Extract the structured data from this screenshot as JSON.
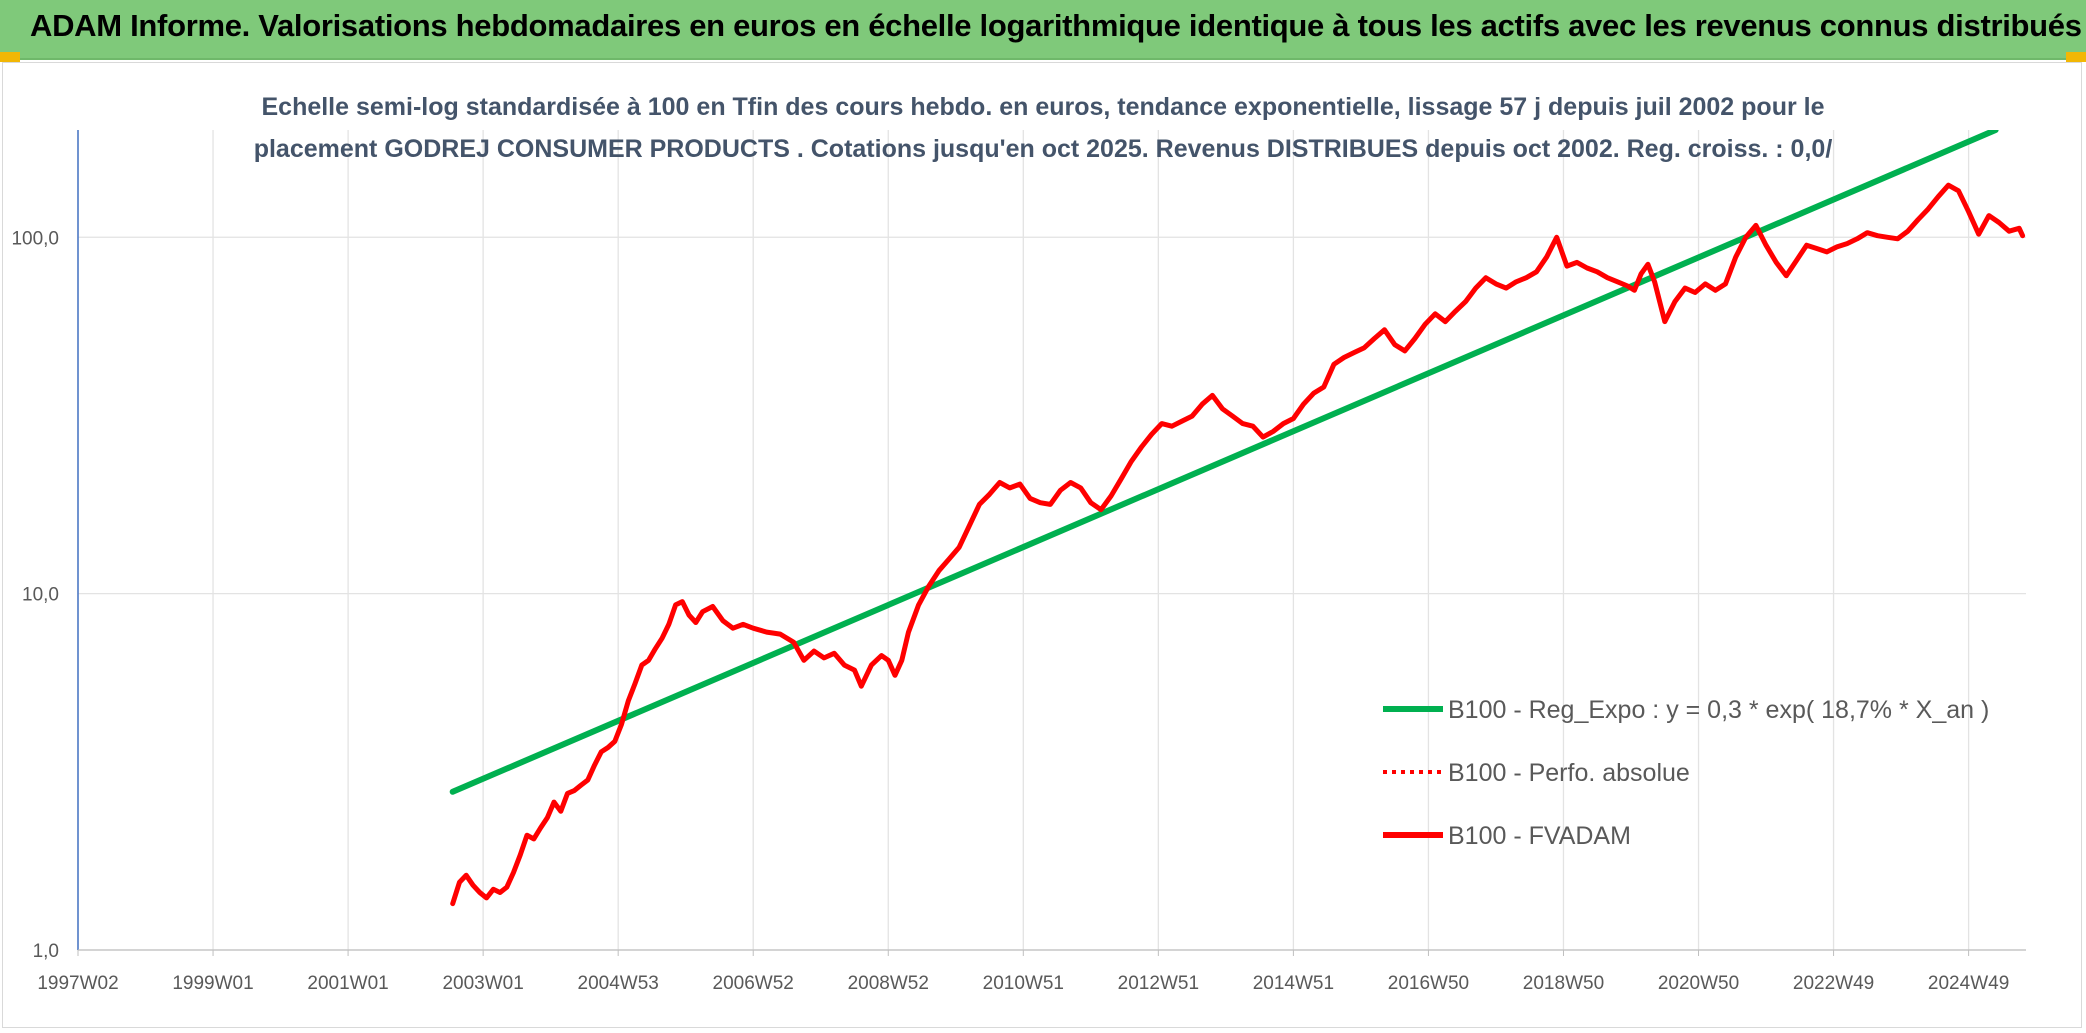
{
  "header": {
    "title": "ADAM Informe. Valorisations hebdomadaires en euros en échelle logarithmique identique à tous les actifs avec les revenus connus distribués"
  },
  "chart_data": {
    "type": "line",
    "title_lines": [
      "Echelle semi-log standardisée à 100 en Tfin des cours hebdo. en euros, tendance exponentielle, lissage 57 j depuis juil 2002 pour le",
      "placement GODREJ CONSUMER PRODUCTS . Cotations jusqu'en oct 2025. Revenus DISTRIBUES depuis oct 2002. Reg. croiss. : 0,0/"
    ],
    "y_scale": "log",
    "ylim": [
      1,
      200
    ],
    "xlim": [
      1997.0,
      2025.85
    ],
    "y_ticks": [
      {
        "value": 1,
        "label": "1,0"
      },
      {
        "value": 10,
        "label": "10,0"
      },
      {
        "value": 100,
        "label": "100,0"
      }
    ],
    "x_ticks": [
      {
        "value": 1997.0,
        "label": "1997W02"
      },
      {
        "value": 1999.0,
        "label": "1999W01"
      },
      {
        "value": 2001.0,
        "label": "2001W01"
      },
      {
        "value": 2003.0,
        "label": "2003W01"
      },
      {
        "value": 2005.0,
        "label": "2004W53"
      },
      {
        "value": 2007.0,
        "label": "2006W52"
      },
      {
        "value": 2009.0,
        "label": "2008W52"
      },
      {
        "value": 2011.0,
        "label": "2010W51"
      },
      {
        "value": 2013.0,
        "label": "2012W51"
      },
      {
        "value": 2015.0,
        "label": "2014W51"
      },
      {
        "value": 2017.0,
        "label": "2016W50"
      },
      {
        "value": 2019.0,
        "label": "2018W50"
      },
      {
        "value": 2021.0,
        "label": "2020W50"
      },
      {
        "value": 2023.0,
        "label": "2022W49"
      },
      {
        "value": 2025.0,
        "label": "2024W49"
      }
    ],
    "grid": "vertical and horizontal",
    "legend_position": "right-middle",
    "series": [
      {
        "name": "B100 - Reg_Expo : y = 0,3 * exp( 18,7% * X_an )",
        "color": "#00b050",
        "style": "solid-thick",
        "x": [
          2002.55,
          2025.4
        ],
        "y": [
          2.78,
          200
        ]
      },
      {
        "name": "B100 - Perfo. absolue",
        "color": "#ff0000",
        "style": "dotted",
        "x": [],
        "y": []
      },
      {
        "name": "B100 - FVADAM",
        "color": "#ff0000",
        "style": "solid-thick",
        "x": [
          2002.55,
          2002.65,
          2002.75,
          2002.85,
          2002.95,
          2003.05,
          2003.15,
          2003.25,
          2003.35,
          2003.45,
          2003.55,
          2003.65,
          2003.75,
          2003.85,
          2003.95,
          2004.05,
          2004.15,
          2004.25,
          2004.35,
          2004.45,
          2004.55,
          2004.65,
          2004.75,
          2004.85,
          2004.95,
          2005.05,
          2005.15,
          2005.25,
          2005.35,
          2005.45,
          2005.55,
          2005.65,
          2005.75,
          2005.85,
          2005.95,
          2006.05,
          2006.15,
          2006.25,
          2006.4,
          2006.55,
          2006.7,
          2006.85,
          2007.0,
          2007.2,
          2007.4,
          2007.6,
          2007.75,
          2007.9,
          2008.05,
          2008.2,
          2008.35,
          2008.5,
          2008.6,
          2008.75,
          2008.9,
          2009.0,
          2009.1,
          2009.2,
          2009.3,
          2009.45,
          2009.6,
          2009.75,
          2009.9,
          2010.05,
          2010.2,
          2010.35,
          2010.5,
          2010.65,
          2010.8,
          2010.95,
          2011.1,
          2011.25,
          2011.4,
          2011.55,
          2011.7,
          2011.85,
          2012.0,
          2012.15,
          2012.3,
          2012.45,
          2012.6,
          2012.75,
          2012.9,
          2013.05,
          2013.2,
          2013.35,
          2013.5,
          2013.65,
          2013.8,
          2013.95,
          2014.1,
          2014.25,
          2014.4,
          2014.55,
          2014.7,
          2014.85,
          2015.0,
          2015.15,
          2015.3,
          2015.45,
          2015.6,
          2015.75,
          2015.9,
          2016.05,
          2016.2,
          2016.35,
          2016.5,
          2016.65,
          2016.8,
          2016.95,
          2017.1,
          2017.25,
          2017.4,
          2017.55,
          2017.7,
          2017.85,
          2018.0,
          2018.15,
          2018.3,
          2018.45,
          2018.6,
          2018.75,
          2018.9,
          2019.05,
          2019.2,
          2019.35,
          2019.5,
          2019.65,
          2019.8,
          2019.95,
          2020.05,
          2020.15,
          2020.25,
          2020.35,
          2020.5,
          2020.65,
          2020.8,
          2020.95,
          2021.1,
          2021.25,
          2021.4,
          2021.55,
          2021.7,
          2021.85,
          2022.0,
          2022.15,
          2022.3,
          2022.45,
          2022.6,
          2022.75,
          2022.9,
          2023.05,
          2023.2,
          2023.35,
          2023.5,
          2023.65,
          2023.8,
          2023.95,
          2024.1,
          2024.25,
          2024.4,
          2024.55,
          2024.7,
          2024.85,
          2025.0,
          2025.15,
          2025.3,
          2025.45,
          2025.6,
          2025.75,
          2025.8
        ],
        "y": [
          1.35,
          1.55,
          1.62,
          1.52,
          1.45,
          1.4,
          1.48,
          1.45,
          1.5,
          1.65,
          1.85,
          2.1,
          2.05,
          2.2,
          2.35,
          2.6,
          2.45,
          2.75,
          2.8,
          2.9,
          3.0,
          3.3,
          3.6,
          3.7,
          3.85,
          4.3,
          5.0,
          5.6,
          6.3,
          6.5,
          7.0,
          7.5,
          8.2,
          9.3,
          9.5,
          8.7,
          8.3,
          8.9,
          9.2,
          8.4,
          8.0,
          8.2,
          8.0,
          7.8,
          7.7,
          7.3,
          6.5,
          6.9,
          6.6,
          6.8,
          6.3,
          6.1,
          5.5,
          6.3,
          6.7,
          6.5,
          5.9,
          6.5,
          7.8,
          9.3,
          10.5,
          11.6,
          12.5,
          13.5,
          15.5,
          17.8,
          19.0,
          20.5,
          19.8,
          20.3,
          18.5,
          18.0,
          17.8,
          19.5,
          20.5,
          19.8,
          18.0,
          17.2,
          18.8,
          21.0,
          23.5,
          25.8,
          28.0,
          30.0,
          29.5,
          30.5,
          31.5,
          34.0,
          36.0,
          33.0,
          31.5,
          30.0,
          29.5,
          27.5,
          28.5,
          30.0,
          31.0,
          34.0,
          36.5,
          38.0,
          44.0,
          46.0,
          47.5,
          49.0,
          52.0,
          55.0,
          50.0,
          48.0,
          52.0,
          57.0,
          61.0,
          58.0,
          62.0,
          66.0,
          72.0,
          77.0,
          74.0,
          72.0,
          75.0,
          77.0,
          80.0,
          88.0,
          100.0,
          83.0,
          85.0,
          82.0,
          80.0,
          77.0,
          75.0,
          73.0,
          71.0,
          79.0,
          84.0,
          75.0,
          58.0,
          66.0,
          72.0,
          70.0,
          74.0,
          71.0,
          74.0,
          88.0,
          100.0,
          108.0,
          95.0,
          85.0,
          78.0,
          86.0,
          95.0,
          93.0,
          91.0,
          94.0,
          96.0,
          99.0,
          103.0,
          101.0,
          100.0,
          99.0,
          104.0,
          112.0,
          120.0,
          130.0,
          140.0,
          135.0,
          118.0,
          102.0,
          115.0,
          110.0,
          104.0,
          106.0,
          101.0
        ]
      }
    ]
  }
}
